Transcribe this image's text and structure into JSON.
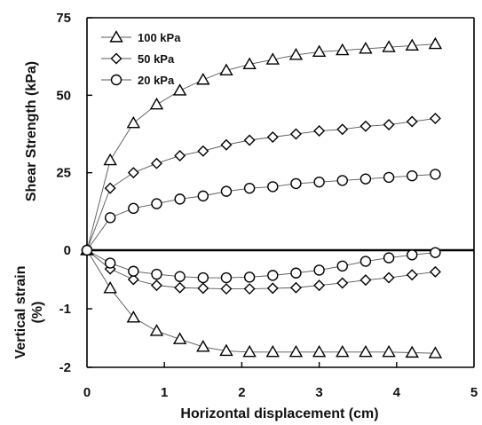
{
  "chart_data": [
    {
      "type": "line",
      "ylabel": "Shear Strength (kPa)",
      "ylim": [
        0,
        75
      ],
      "yticks": [
        0,
        25,
        50,
        75
      ],
      "legend": {
        "placement": "top-left"
      },
      "series": [
        {
          "name": "100 kPa",
          "marker": "triangle",
          "x": [
            0,
            0.3,
            0.6,
            0.9,
            1.2,
            1.5,
            1.8,
            2.1,
            2.4,
            2.7,
            3.0,
            3.3,
            3.6,
            3.9,
            4.2,
            4.5
          ],
          "values": [
            0,
            29,
            41,
            47,
            51.5,
            55,
            58,
            60,
            61.5,
            63,
            64,
            64.5,
            65,
            65.5,
            66,
            66.5
          ]
        },
        {
          "name": "50 kPa",
          "marker": "diamond",
          "x": [
            0,
            0.3,
            0.6,
            0.9,
            1.2,
            1.5,
            1.8,
            2.1,
            2.4,
            2.7,
            3.0,
            3.3,
            3.6,
            3.9,
            4.2,
            4.5
          ],
          "values": [
            0,
            20,
            25,
            28,
            30.5,
            32,
            34,
            35.5,
            36.5,
            37.5,
            38.5,
            39,
            40,
            40.5,
            41.5,
            42.5
          ]
        },
        {
          "name": "20 kPa",
          "marker": "circle",
          "x": [
            0,
            0.3,
            0.6,
            0.9,
            1.2,
            1.5,
            1.8,
            2.1,
            2.4,
            2.7,
            3.0,
            3.3,
            3.6,
            3.9,
            4.2,
            4.5
          ],
          "values": [
            0,
            10.5,
            13.5,
            15,
            16.5,
            17.5,
            19,
            20,
            20.5,
            21.5,
            22,
            22.5,
            23,
            23.5,
            24,
            24.5
          ]
        }
      ]
    },
    {
      "type": "line",
      "xlabel": "Horizontal displacement (cm)",
      "ylabel": "Vertical strain (%)",
      "xlim": [
        0,
        5
      ],
      "xticks": [
        0,
        1,
        2,
        3,
        4,
        5
      ],
      "ylim": [
        -2,
        0
      ],
      "yticks": [
        -2,
        -1
      ],
      "series": [
        {
          "name": "100 kPa",
          "marker": "triangle",
          "x": [
            0,
            0.3,
            0.6,
            0.9,
            1.2,
            1.5,
            1.8,
            2.1,
            2.4,
            2.7,
            3.0,
            3.3,
            3.6,
            3.9,
            4.2,
            4.5
          ],
          "values": [
            0,
            -0.65,
            -1.15,
            -1.38,
            -1.52,
            -1.65,
            -1.72,
            -1.74,
            -1.74,
            -1.74,
            -1.74,
            -1.74,
            -1.74,
            -1.74,
            -1.75,
            -1.76
          ]
        },
        {
          "name": "50 kPa",
          "marker": "diamond",
          "x": [
            0,
            0.3,
            0.6,
            0.9,
            1.2,
            1.5,
            1.8,
            2.1,
            2.4,
            2.7,
            3.0,
            3.3,
            3.6,
            3.9,
            4.2,
            4.5
          ],
          "values": [
            0,
            -0.32,
            -0.5,
            -0.6,
            -0.64,
            -0.65,
            -0.66,
            -0.66,
            -0.65,
            -0.64,
            -0.6,
            -0.56,
            -0.51,
            -0.47,
            -0.42,
            -0.37
          ]
        },
        {
          "name": "20 kPa",
          "marker": "circle",
          "x": [
            0,
            0.3,
            0.6,
            0.9,
            1.2,
            1.5,
            1.8,
            2.1,
            2.4,
            2.7,
            3.0,
            3.3,
            3.6,
            3.9,
            4.2,
            4.5
          ],
          "values": [
            0,
            -0.22,
            -0.36,
            -0.41,
            -0.45,
            -0.47,
            -0.47,
            -0.46,
            -0.43,
            -0.39,
            -0.34,
            -0.27,
            -0.19,
            -0.13,
            -0.08,
            -0.04
          ]
        }
      ]
    }
  ]
}
